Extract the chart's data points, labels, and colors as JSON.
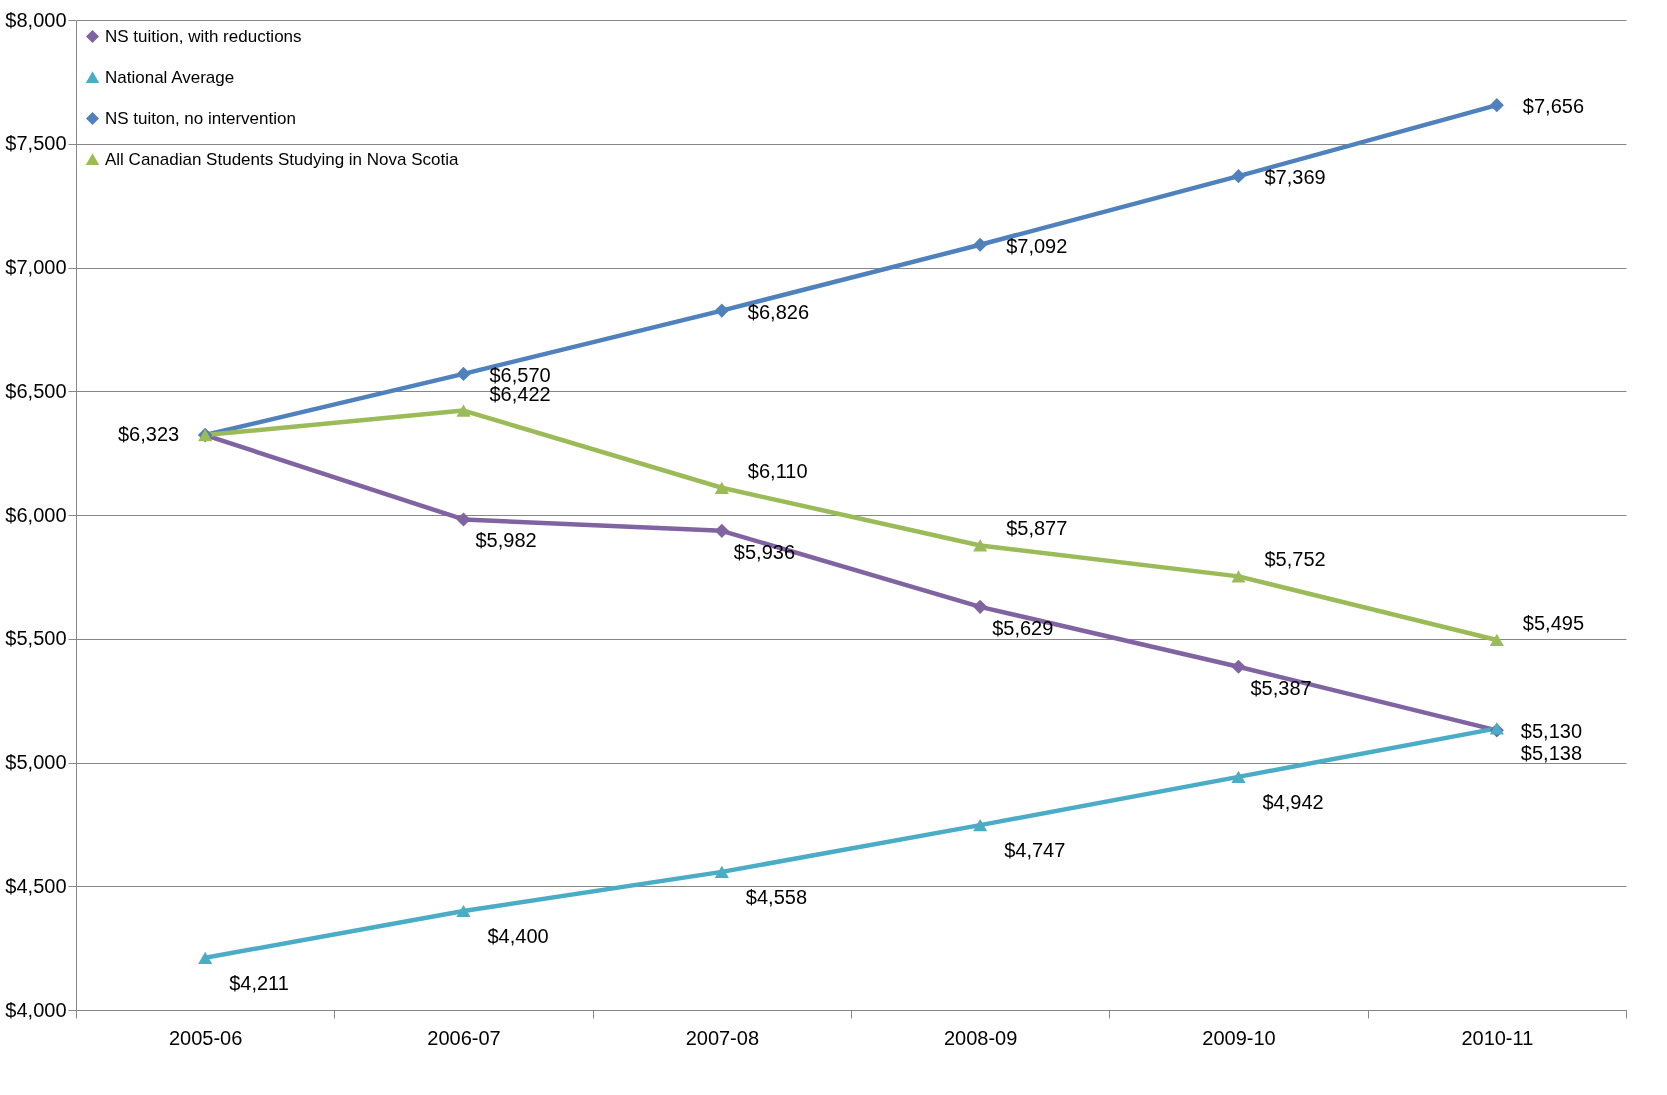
{
  "chart_data": {
    "type": "line",
    "categories": [
      "2005-06",
      "2006-07",
      "2007-08",
      "2008-09",
      "2009-10",
      "2010-11"
    ],
    "ylim": [
      4000,
      8000
    ],
    "yticks": [
      {
        "value": 4000,
        "label": "$4,000"
      },
      {
        "value": 4500,
        "label": "$4,500"
      },
      {
        "value": 5000,
        "label": "$5,000"
      },
      {
        "value": 5500,
        "label": "$5,500"
      },
      {
        "value": 6000,
        "label": "$6,000"
      },
      {
        "value": 6500,
        "label": "$6,500"
      },
      {
        "value": 7000,
        "label": "$7,000"
      },
      {
        "value": 7500,
        "label": "$7,500"
      },
      {
        "value": 8000,
        "label": "$8,000"
      }
    ],
    "grid": "y",
    "legend": "top left",
    "line_style": "solid",
    "series": [
      {
        "name": "NS tuition, with reductions",
        "color": "#8064a2",
        "marker": "diamond",
        "values": [
          6323,
          5982,
          5936,
          5629,
          5387,
          5130
        ],
        "value_labels": [
          "$6,323",
          "$5,982",
          "$5,936",
          "$5,629",
          "$5,387",
          "$5,130"
        ]
      },
      {
        "name": "National Average",
        "color": "#4bacc6",
        "marker": "triangle",
        "values": [
          4211,
          4400,
          4558,
          4747,
          4942,
          5138
        ],
        "value_labels": [
          "$4,211",
          "$4,400",
          "$4,558",
          "$4,747",
          "$4,942",
          "$5,138"
        ]
      },
      {
        "name": "NS tuiton, no intervention",
        "color": "#4f81bd",
        "marker": "diamond",
        "values": [
          6323,
          6570,
          6826,
          7092,
          7369,
          7656
        ],
        "value_labels": [
          null,
          "$6,570",
          "$6,826",
          "$7,092",
          "$7,369",
          "$7,656"
        ]
      },
      {
        "name": "All Canadian Students Studying in Nova Scotia",
        "color": "#9bbb59",
        "marker": "triangle",
        "values": [
          6323,
          6422,
          6110,
          5877,
          5752,
          5495
        ],
        "value_labels": [
          null,
          "$6,422",
          "$6,110",
          "$5,877",
          "$5,752",
          "$5,495"
        ]
      }
    ]
  }
}
